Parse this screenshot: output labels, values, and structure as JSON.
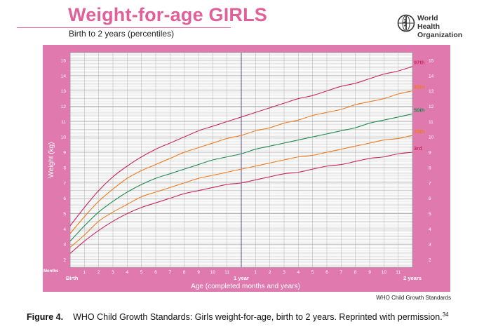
{
  "header": {
    "title": "Weight-for-age GIRLS",
    "subtitle": "Birth to 2 years (percentiles)",
    "org_line1": "World Health",
    "org_line2": "Organization"
  },
  "footer": {
    "source": "WHO Child Growth Standards",
    "caption_label": "Figure 4.",
    "caption_text": "WHO Child Growth Standards: Girls weight-for-age, birth to 2 years. Reprinted with permission.",
    "caption_ref": "34"
  },
  "colors": {
    "panel": "#e07aae",
    "grid": "#b0b0b0",
    "p3": "#c8285a",
    "p15": "#ef7a1e",
    "p50": "#1f8a50",
    "p85": "#ef7a1e",
    "p97": "#c8285a"
  },
  "chart_data": {
    "type": "line",
    "title": "Weight-for-age GIRLS",
    "subtitle": "Birth to 2 years (percentiles)",
    "xlabel": "Age (completed months and years)",
    "ylabel": "Weight (kg)",
    "months_label": "Months",
    "xlim": [
      0,
      24
    ],
    "ylim": [
      1.5,
      15.5
    ],
    "x_ticks": [
      "Birth",
      "1",
      "2",
      "3",
      "4",
      "5",
      "6",
      "7",
      "8",
      "9",
      "10",
      "11",
      "1 year",
      "1",
      "2",
      "3",
      "4",
      "5",
      "6",
      "7",
      "8",
      "9",
      "10",
      "11",
      "2 years"
    ],
    "y_ticks": [
      "2",
      "3",
      "4",
      "5",
      "6",
      "7",
      "8",
      "9",
      "10",
      "11",
      "12",
      "13",
      "14",
      "15"
    ],
    "x": [
      0,
      1,
      2,
      3,
      4,
      5,
      6,
      7,
      8,
      9,
      10,
      11,
      12,
      13,
      14,
      15,
      16,
      17,
      18,
      19,
      20,
      21,
      22,
      23,
      24
    ],
    "series": [
      {
        "name": "3rd",
        "color_key": "p3",
        "values": [
          2.4,
          3.2,
          3.9,
          4.5,
          5.0,
          5.4,
          5.7,
          6.0,
          6.3,
          6.5,
          6.7,
          6.9,
          7.0,
          7.2,
          7.4,
          7.6,
          7.7,
          7.9,
          8.1,
          8.2,
          8.4,
          8.6,
          8.7,
          8.9,
          9.0
        ]
      },
      {
        "name": "15th",
        "color_key": "p15",
        "values": [
          2.8,
          3.6,
          4.5,
          5.1,
          5.6,
          6.1,
          6.4,
          6.7,
          7.0,
          7.3,
          7.5,
          7.7,
          7.9,
          8.1,
          8.3,
          8.5,
          8.7,
          8.8,
          9.0,
          9.2,
          9.4,
          9.6,
          9.8,
          9.9,
          10.1
        ]
      },
      {
        "name": "50th",
        "color_key": "p50",
        "values": [
          3.2,
          4.2,
          5.1,
          5.8,
          6.4,
          6.9,
          7.3,
          7.6,
          7.9,
          8.2,
          8.5,
          8.7,
          8.9,
          9.2,
          9.4,
          9.6,
          9.8,
          10.0,
          10.2,
          10.4,
          10.6,
          10.9,
          11.1,
          11.3,
          11.5
        ]
      },
      {
        "name": "85th",
        "color_key": "p85",
        "values": [
          3.7,
          4.8,
          5.8,
          6.6,
          7.3,
          7.8,
          8.2,
          8.6,
          9.0,
          9.3,
          9.6,
          9.9,
          10.1,
          10.4,
          10.6,
          10.9,
          11.1,
          11.4,
          11.6,
          11.8,
          12.1,
          12.3,
          12.5,
          12.8,
          13.0
        ]
      },
      {
        "name": "97th",
        "color_key": "p97",
        "values": [
          4.2,
          5.4,
          6.5,
          7.4,
          8.1,
          8.7,
          9.2,
          9.6,
          10.0,
          10.4,
          10.7,
          11.0,
          11.3,
          11.6,
          11.9,
          12.2,
          12.5,
          12.7,
          13.0,
          13.3,
          13.5,
          13.8,
          14.1,
          14.3,
          14.6
        ]
      }
    ],
    "grid": true,
    "legend": "right-end labels"
  }
}
